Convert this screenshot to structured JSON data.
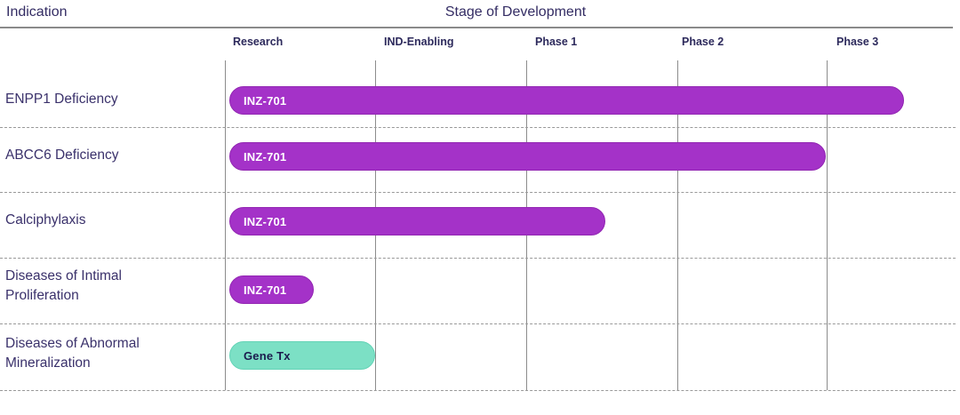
{
  "header": {
    "indication_label": "Indication",
    "stage_label": "Stage of Development"
  },
  "columns": [
    "Research",
    "IND-Enabling",
    "Phase 1",
    "Phase 2",
    "Phase 3"
  ],
  "rows": [
    {
      "indication": "ENPP1 Deficiency",
      "program": "INZ-701",
      "bar_color": "#A432C8",
      "extent_stages": 4.5
    },
    {
      "indication": "ABCC6 Deficiency",
      "program": "INZ-701",
      "bar_color": "#A432C8",
      "extent_stages": 4.0
    },
    {
      "indication": "Calciphylaxis",
      "program": "INZ-701",
      "bar_color": "#A432C8",
      "extent_stages": 2.5
    },
    {
      "indication": "Diseases of Intimal Proliferation",
      "program": "INZ-701",
      "bar_color": "#A432C8",
      "extent_stages": 0.6
    },
    {
      "indication": "Diseases of Abnormal Mineralization",
      "program": "Gene Tx",
      "bar_color": "#7CE0C5",
      "extent_stages": 1.0
    }
  ],
  "colors": {
    "bar_purple": "#A432C8",
    "bar_teal": "#7CE0C5",
    "text_navy": "#342D64",
    "grid_gray": "#8C8C8C",
    "row_separator_gray": "#999999"
  },
  "chart_data": {
    "type": "bar",
    "subtype": "pipeline-gantt",
    "orientation": "horizontal",
    "title": "Stage of Development",
    "ylabel": "Indication",
    "xlabel": "Stage of Development",
    "x_stage_ticks": [
      "Research",
      "IND-Enabling",
      "Phase 1",
      "Phase 2",
      "Phase 3"
    ],
    "x_range_stage_units": [
      0,
      5
    ],
    "categories": [
      "ENPP1 Deficiency",
      "ABCC6 Deficiency",
      "Calciphylaxis",
      "Diseases of Intimal Proliferation",
      "Diseases of Abnormal Mineralization"
    ],
    "bars": [
      {
        "category": "ENPP1 Deficiency",
        "label": "INZ-701",
        "start": 0,
        "end": 4.5,
        "end_description": "mid Phase 3",
        "color": "#A432C8"
      },
      {
        "category": "ABCC6 Deficiency",
        "label": "INZ-701",
        "start": 0,
        "end": 4.0,
        "end_description": "end of Phase 2",
        "color": "#A432C8"
      },
      {
        "category": "Calciphylaxis",
        "label": "INZ-701",
        "start": 0,
        "end": 2.5,
        "end_description": "mid Phase 1",
        "color": "#A432C8"
      },
      {
        "category": "Diseases of Intimal Proliferation",
        "label": "INZ-701",
        "start": 0,
        "end": 0.6,
        "end_description": "mid Research",
        "color": "#A432C8"
      },
      {
        "category": "Diseases of Abnormal Mineralization",
        "label": "Gene Tx",
        "start": 0,
        "end": 1.0,
        "end_description": "end of Research",
        "color": "#7CE0C5"
      }
    ],
    "legend": "none",
    "grid": "solid vertical stage separators; dashed horizontal row separators"
  }
}
